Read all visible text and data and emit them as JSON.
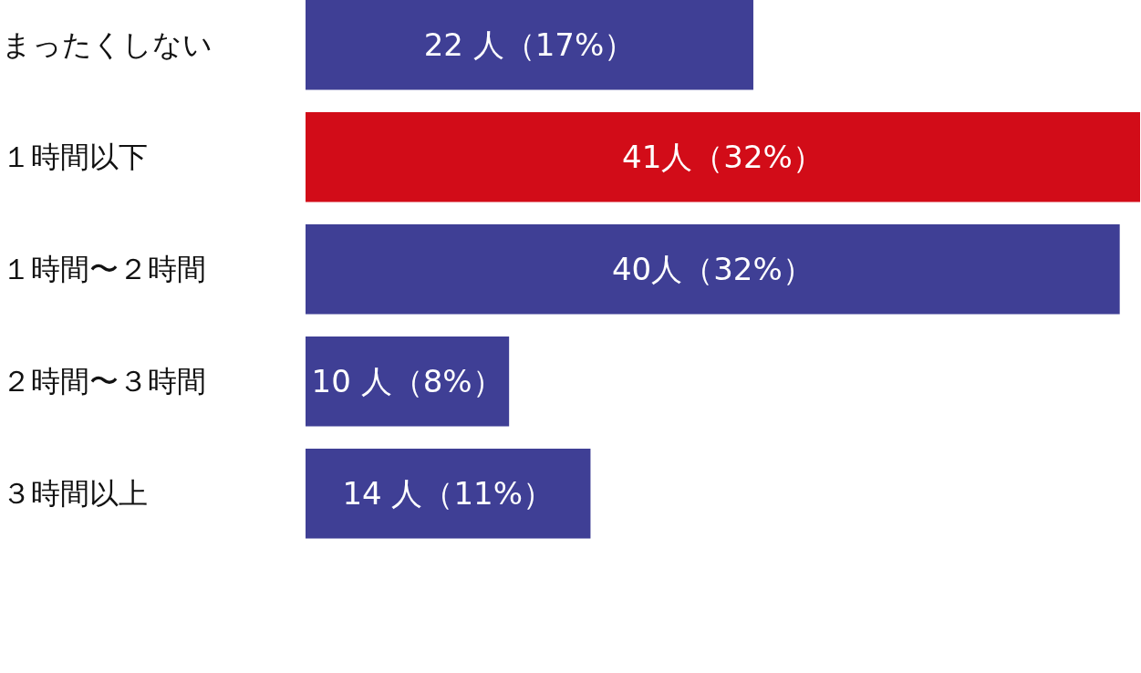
{
  "chart_data": {
    "type": "bar",
    "orientation": "horizontal",
    "categories": [
      "まったくしない",
      "１時間以下",
      "１時間〜２時間",
      "２時間〜３時間",
      "３時間以上"
    ],
    "values": [
      22,
      41,
      40,
      10,
      14
    ],
    "colors": [
      "#3f3f95",
      "#d20c18",
      "#3f3f95",
      "#3f3f95",
      "#3f3f95"
    ],
    "value_labels": [
      "22 人（17%）",
      "41人（32%）",
      "40人（32%）",
      "10 人（8%）",
      "14 人（11%）"
    ]
  }
}
